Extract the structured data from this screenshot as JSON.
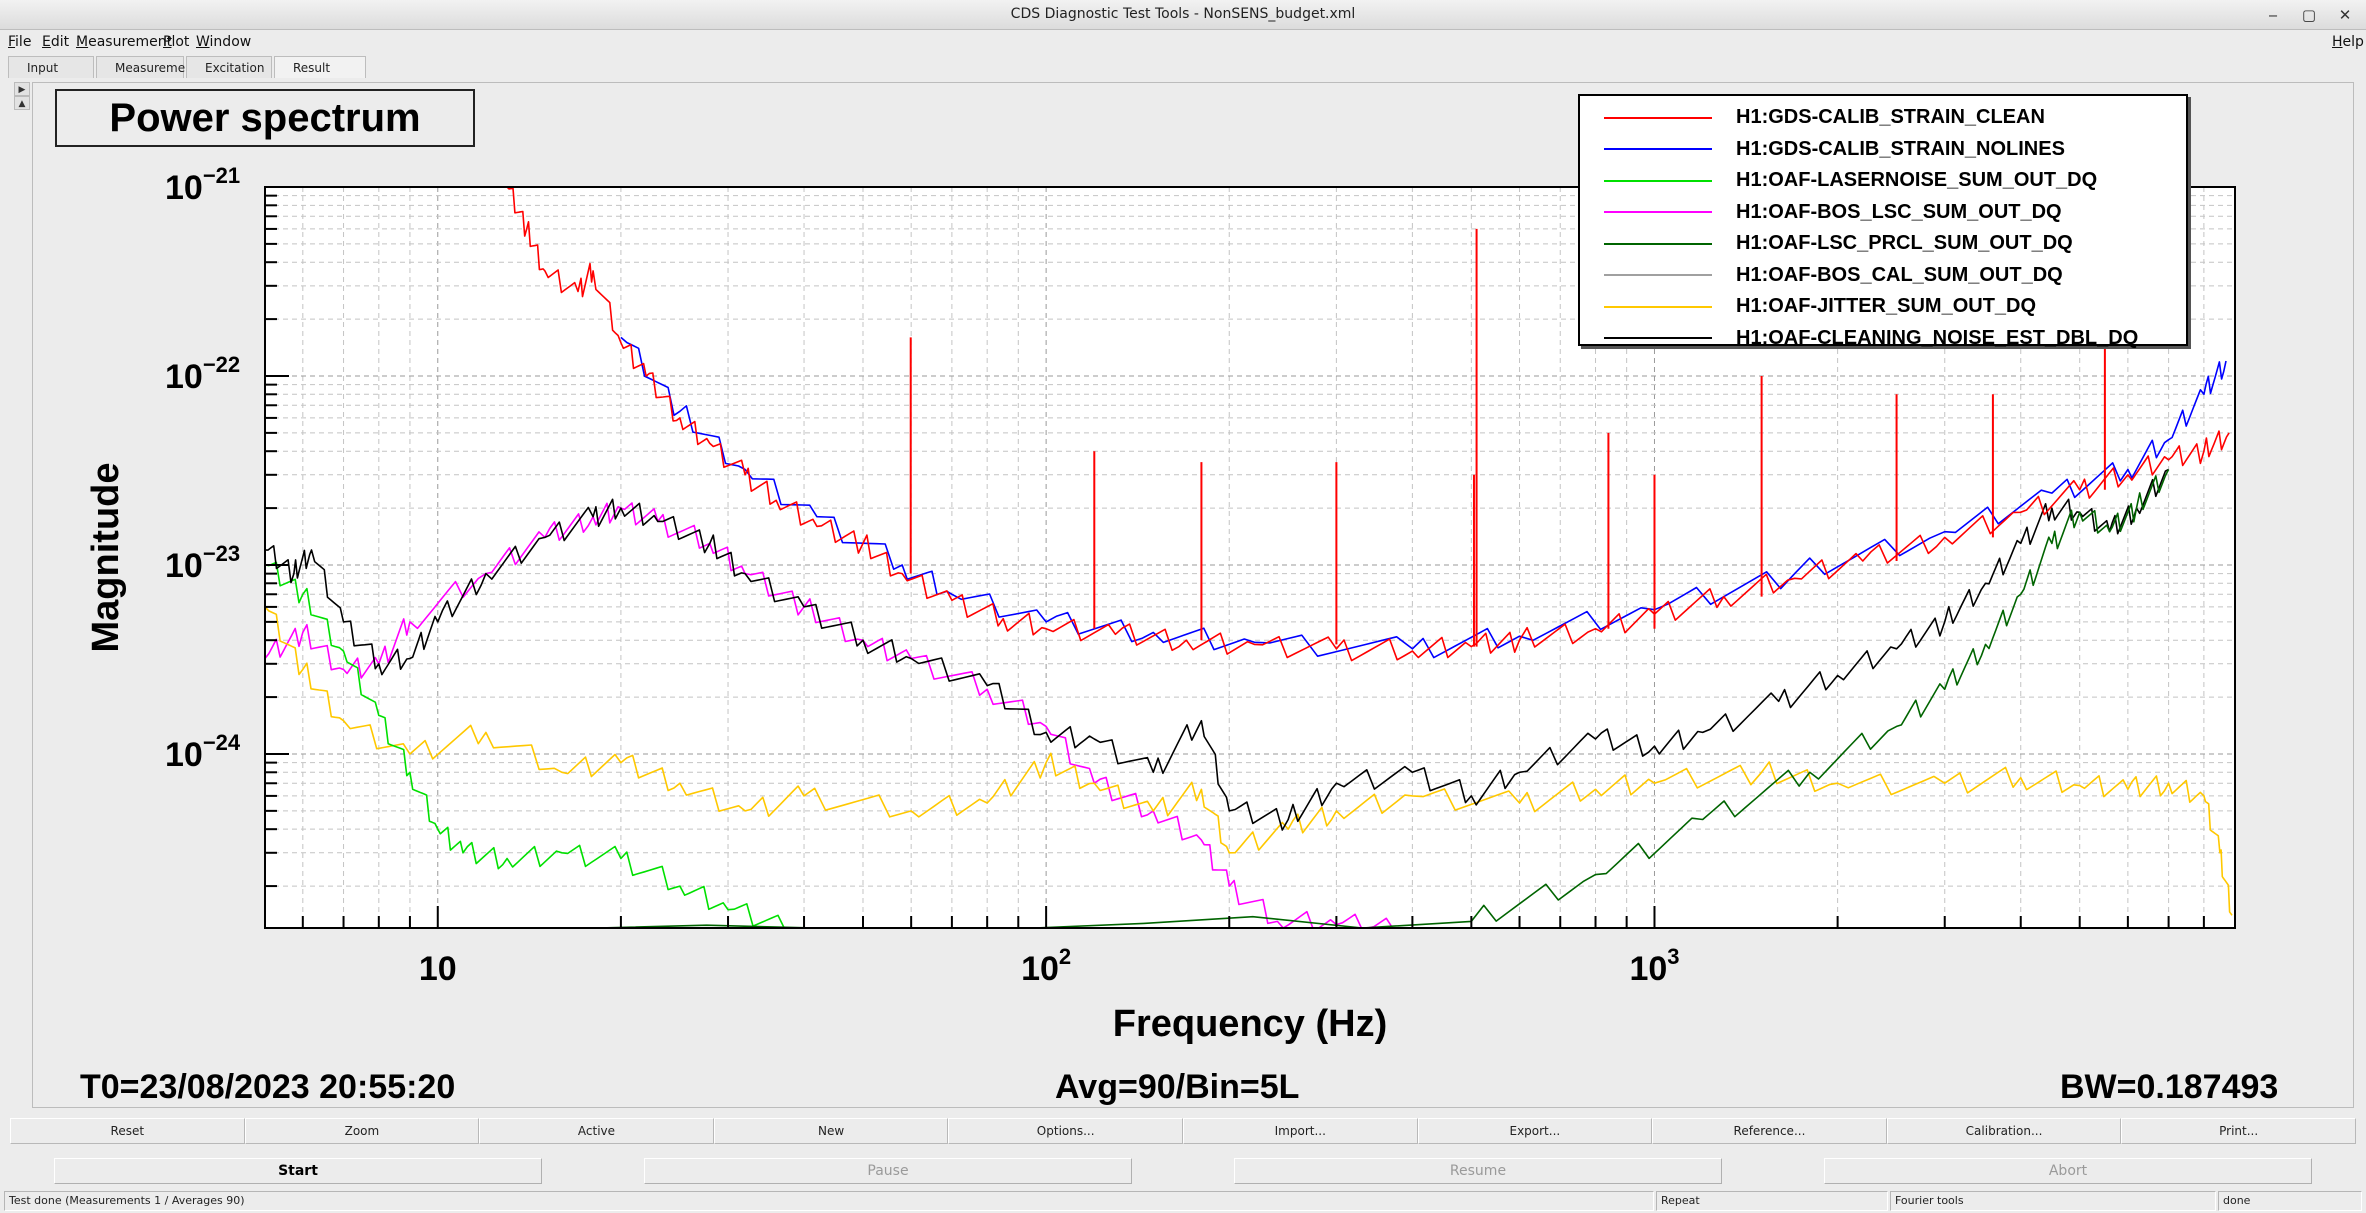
{
  "window": {
    "title": "CDS Diagnostic Test Tools - NonSENS_budget.xml"
  },
  "menu": {
    "items": [
      {
        "accel": "F",
        "rest": "ile",
        "full": "File"
      },
      {
        "accel": "E",
        "rest": "dit",
        "full": "Edit"
      },
      {
        "accel": "M",
        "rest": "easurement",
        "full": "Measurement"
      },
      {
        "accel": "P",
        "rest": "lot",
        "full": "Plot"
      },
      {
        "accel": "W",
        "rest": "indow",
        "full": "Window"
      }
    ],
    "help": {
      "accel": "H",
      "rest": "elp"
    }
  },
  "tabs": [
    "Input",
    "Measurement",
    "Excitation",
    "Result"
  ],
  "active_tab": "Result",
  "pane": {
    "title": "Power spectrum",
    "stats": {
      "t0": "T0=23/08/2023 20:55:20",
      "avg": "Avg=90/Bin=5L",
      "bw": "BW=0.187493"
    }
  },
  "chart_data": {
    "type": "line",
    "title": "Power spectrum",
    "xlabel": "Frequency (Hz)",
    "ylabel": "Magnitude",
    "xscale": "log",
    "yscale": "log",
    "xlim": [
      5.2,
      9000
    ],
    "ylim": [
      1.2e-25,
      1e-21
    ],
    "xticks": [
      {
        "base": "10",
        "exp": ""
      },
      {
        "base": "10",
        "exp": "2"
      },
      {
        "base": "10",
        "exp": "3"
      }
    ],
    "yticks": [
      {
        "base": "10",
        "exp": "−21"
      },
      {
        "base": "10",
        "exp": "−22"
      },
      {
        "base": "10",
        "exp": "−23"
      },
      {
        "base": "10",
        "exp": "−24"
      }
    ],
    "grid": true,
    "legend_position": "top-right",
    "series": [
      {
        "name": "H1:GDS-CALIB_STRAIN_CLEAN",
        "color": "#ff0000",
        "points": [
          [
            13,
            1e-21
          ],
          [
            14,
            6e-22
          ],
          [
            15,
            3.6e-22
          ],
          [
            17,
            2.8e-22
          ],
          [
            18,
            3.6e-22
          ],
          [
            20,
            1.5e-22
          ],
          [
            22,
            1e-22
          ],
          [
            25,
            6e-23
          ],
          [
            28,
            4.4e-23
          ],
          [
            32,
            3e-23
          ],
          [
            36,
            2.2e-23
          ],
          [
            42,
            1.6e-23
          ],
          [
            50,
            1.3e-23
          ],
          [
            58,
            9e-24
          ],
          [
            70,
            6.5e-24
          ],
          [
            85,
            5.2e-24
          ],
          [
            100,
            4.6e-24
          ],
          [
            130,
            4.3e-24
          ],
          [
            170,
            4e-24
          ],
          [
            220,
            3.8e-24
          ],
          [
            300,
            3.6e-24
          ],
          [
            400,
            3.5e-24
          ],
          [
            500,
            3.7e-24
          ],
          [
            600,
            4e-24
          ],
          [
            800,
            4.6e-24
          ],
          [
            1000,
            5.5e-24
          ],
          [
            1300,
            6.8e-24
          ],
          [
            1700,
            8.5e-24
          ],
          [
            2200,
            1.05e-23
          ],
          [
            3000,
            1.4e-23
          ],
          [
            4000,
            1.9e-23
          ],
          [
            5000,
            2.5e-23
          ],
          [
            6000,
            3e-23
          ],
          [
            7000,
            3.6e-23
          ],
          [
            8000,
            4e-23
          ],
          [
            8800,
            5e-23
          ]
        ],
        "lines": [
          [
            59.9,
            1.6e-22
          ],
          [
            120,
            4e-23
          ],
          [
            180,
            3.5e-23
          ],
          [
            300,
            3.5e-23
          ],
          [
            505,
            3e-23
          ],
          [
            510,
            6e-22
          ],
          [
            840,
            5e-23
          ],
          [
            1000,
            3e-23
          ],
          [
            1500,
            1e-22
          ],
          [
            2500,
            8e-23
          ],
          [
            3600,
            8e-23
          ],
          [
            5500,
            1.5e-22
          ]
        ]
      },
      {
        "name": "H1:GDS-CALIB_STRAIN_NOLINES",
        "color": "#0000ff",
        "points": [
          [
            20,
            1.6e-22
          ],
          [
            25,
            6.5e-23
          ],
          [
            32,
            3.2e-23
          ],
          [
            42,
            1.8e-23
          ],
          [
            58,
            1e-23
          ],
          [
            70,
            7e-24
          ],
          [
            100,
            5e-24
          ],
          [
            150,
            4.4e-24
          ],
          [
            220,
            3.9e-24
          ],
          [
            400,
            3.6e-24
          ],
          [
            600,
            4.2e-24
          ],
          [
            1000,
            5.8e-24
          ],
          [
            1700,
            9e-24
          ],
          [
            3000,
            1.5e-23
          ],
          [
            4500,
            2.4e-23
          ],
          [
            6000,
            3.2e-23
          ],
          [
            7000,
            4.6e-23
          ],
          [
            8000,
            8e-23
          ],
          [
            8700,
            1.2e-22
          ]
        ],
        "lines": []
      },
      {
        "name": "H1:OAF-LASERNOISE_SUM_OUT_DQ",
        "color": "#00e000",
        "points": [
          [
            5.2,
            1e-23
          ],
          [
            6,
            7e-24
          ],
          [
            7,
            3.5e-24
          ],
          [
            8,
            1.6e-24
          ],
          [
            9,
            8e-25
          ],
          [
            10,
            4e-25
          ],
          [
            11,
            3e-25
          ],
          [
            13,
            2.8e-25
          ],
          [
            16,
            3e-25
          ],
          [
            20,
            2.8e-25
          ],
          [
            25,
            2e-25
          ],
          [
            30,
            1.5e-25
          ],
          [
            38,
            1.2e-25
          ]
        ],
        "lines": []
      },
      {
        "name": "H1:OAF-BOS_LSC_SUM_OUT_DQ",
        "color": "#ff00ff",
        "points": [
          [
            5.2,
            3.2e-24
          ],
          [
            6,
            4.4e-24
          ],
          [
            7,
            2.8e-24
          ],
          [
            8,
            3e-24
          ],
          [
            9,
            5e-24
          ],
          [
            12,
            9e-24
          ],
          [
            15,
            1.4e-23
          ],
          [
            18,
            1.8e-23
          ],
          [
            20,
            2e-23
          ],
          [
            23,
            1.7e-23
          ],
          [
            28,
            1.3e-23
          ],
          [
            32,
            9e-24
          ],
          [
            40,
            6e-24
          ],
          [
            50,
            4e-24
          ],
          [
            60,
            3.2e-24
          ],
          [
            80,
            2.2e-24
          ],
          [
            100,
            1.4e-24
          ],
          [
            120,
            7e-25
          ],
          [
            150,
            5e-25
          ],
          [
            180,
            3.5e-25
          ],
          [
            200,
            2e-25
          ],
          [
            240,
            1.3e-25
          ],
          [
            300,
            1.25e-25
          ],
          [
            380,
            1.2e-25
          ]
        ],
        "lines": []
      },
      {
        "name": "H1:OAF-LSC_PRCL_SUM_OUT_DQ",
        "color": "#006400",
        "points": [
          [
            8,
            1e-25
          ],
          [
            500,
            1.3e-25
          ],
          [
            800,
            2.3e-25
          ],
          [
            1200,
            4.5e-25
          ],
          [
            1800,
            8e-25
          ],
          [
            2500,
            1.4e-24
          ],
          [
            3000,
            2.2e-24
          ],
          [
            3500,
            3.8e-24
          ],
          [
            4000,
            7e-24
          ],
          [
            4500,
            1.3e-23
          ],
          [
            5000,
            1.9e-23
          ],
          [
            5600,
            1.5e-23
          ],
          [
            6200,
            2e-23
          ],
          [
            7000,
            3.2e-23
          ]
        ],
        "lines": []
      },
      {
        "name": "H1:OAF-BOS_CAL_SUM_OUT_DQ",
        "color": "#a0a0a0",
        "points": [],
        "lines": []
      },
      {
        "name": "H1:OAF-JITTER_SUM_OUT_DQ",
        "color": "#ffc800",
        "points": [
          [
            5.2,
            6e-24
          ],
          [
            6,
            2.8e-24
          ],
          [
            7,
            1.5e-24
          ],
          [
            9,
            1e-24
          ],
          [
            12,
            1.3e-24
          ],
          [
            16,
            8e-25
          ],
          [
            20,
            9e-25
          ],
          [
            25,
            7e-25
          ],
          [
            32,
            5e-25
          ],
          [
            40,
            6e-25
          ],
          [
            60,
            5e-25
          ],
          [
            80,
            5.5e-25
          ],
          [
            100,
            9e-25
          ],
          [
            120,
            7e-25
          ],
          [
            150,
            5e-25
          ],
          [
            180,
            6.5e-25
          ],
          [
            200,
            3e-25
          ],
          [
            250,
            4e-25
          ],
          [
            300,
            5e-25
          ],
          [
            400,
            6e-25
          ],
          [
            600,
            5.5e-25
          ],
          [
            800,
            6.5e-25
          ],
          [
            1000,
            7e-25
          ],
          [
            1500,
            8e-25
          ],
          [
            2000,
            7e-25
          ],
          [
            3000,
            7e-25
          ],
          [
            4000,
            7.5e-25
          ],
          [
            5000,
            6.8e-25
          ],
          [
            6000,
            6.5e-25
          ],
          [
            7000,
            7e-25
          ],
          [
            8000,
            6e-25
          ],
          [
            8500,
            3e-25
          ],
          [
            8900,
            1.4e-25
          ]
        ],
        "lines": []
      },
      {
        "name": "H1:OAF-CLEANING_NOISE_EST_DBL_DQ",
        "color": "#000000",
        "points": [
          [
            5.2,
            1.2e-23
          ],
          [
            5.8,
            9e-24
          ],
          [
            6.2,
            1.2e-23
          ],
          [
            7,
            5e-24
          ],
          [
            8,
            3e-24
          ],
          [
            9,
            3.2e-24
          ],
          [
            10,
            5e-24
          ],
          [
            12,
            9e-24
          ],
          [
            15,
            1.4e-23
          ],
          [
            18,
            1.8e-23
          ],
          [
            20,
            2e-23
          ],
          [
            23,
            1.7e-23
          ],
          [
            28,
            1.3e-23
          ],
          [
            32,
            9e-24
          ],
          [
            40,
            6e-24
          ],
          [
            50,
            4e-24
          ],
          [
            60,
            3.2e-24
          ],
          [
            80,
            2.3e-24
          ],
          [
            100,
            1.3e-24
          ],
          [
            120,
            1.2e-24
          ],
          [
            150,
            8e-25
          ],
          [
            180,
            1.5e-24
          ],
          [
            200,
            5e-25
          ],
          [
            250,
            4.5e-25
          ],
          [
            300,
            7e-25
          ],
          [
            400,
            8e-25
          ],
          [
            500,
            6e-25
          ],
          [
            600,
            8e-25
          ],
          [
            800,
            1.2e-24
          ],
          [
            1000,
            1.1e-24
          ],
          [
            1200,
            1.3e-24
          ],
          [
            1600,
            1.9e-24
          ],
          [
            2000,
            2.6e-24
          ],
          [
            2500,
            3.6e-24
          ],
          [
            3000,
            5e-24
          ],
          [
            3500,
            8e-24
          ],
          [
            4000,
            1.3e-23
          ],
          [
            4500,
            2e-23
          ],
          [
            5000,
            1.9e-23
          ],
          [
            5600,
            1.5e-23
          ],
          [
            6200,
            2e-23
          ],
          [
            7000,
            3.2e-23
          ]
        ],
        "lines": []
      }
    ]
  },
  "toolbar": [
    "Reset",
    "Zoom",
    "Active",
    "New",
    "Options...",
    "Import...",
    "Export...",
    "Reference...",
    "Calibration...",
    "Print..."
  ],
  "run_buttons": {
    "start": "Start",
    "pause": "Pause",
    "resume": "Resume",
    "abort": "Abort"
  },
  "status": {
    "message": "Test done (Measurements 1 / Averages 90)",
    "repeat": "Repeat",
    "mode": "Fourier tools",
    "state": "done"
  }
}
